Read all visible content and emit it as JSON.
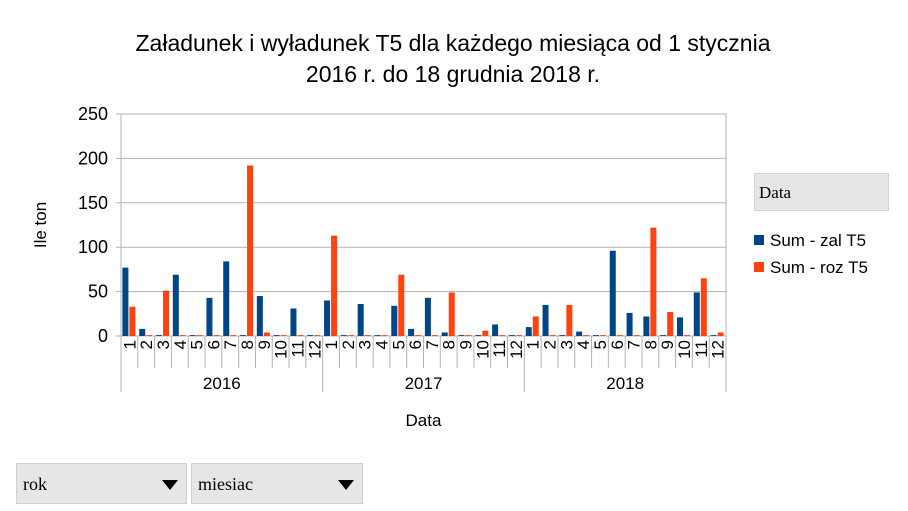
{
  "chart_data": {
    "type": "bar",
    "title": "Załadunek i wyładunek T5 dla każdego miesiąca od 1 stycznia 2016 r. do 18 grudnia 2018 r.",
    "title_lines": [
      "Załadunek i wyładunek T5 dla każdego miesiąca od 1 stycznia",
      "2016 r. do 18 grudnia 2018 r."
    ],
    "xlabel": "Data",
    "ylabel": "Ile ton",
    "ylim": [
      0,
      250
    ],
    "yticks": [
      "0",
      "50",
      "100",
      "150",
      "200",
      "250"
    ],
    "grid": true,
    "legend_position": "right",
    "legend_title": "Data",
    "years": [
      "2016",
      "2017",
      "2018"
    ],
    "months": [
      "1",
      "2",
      "3",
      "4",
      "5",
      "6",
      "7",
      "8",
      "9",
      "10",
      "11",
      "12"
    ],
    "series": [
      {
        "name": "Sum - zal T5",
        "color": "#004586",
        "values": [
          77,
          8,
          1,
          69,
          1,
          43,
          84,
          1,
          45,
          1,
          31,
          1,
          40,
          1,
          36,
          1,
          34,
          8,
          43,
          4,
          1,
          1,
          13,
          1,
          10,
          35,
          1,
          5,
          1,
          96,
          26,
          22,
          1,
          21,
          49,
          1
        ]
      },
      {
        "name": "Sum - roz T5",
        "color": "#ff420e",
        "values": [
          33,
          1,
          51,
          1,
          1,
          1,
          1,
          192,
          4,
          1,
          1,
          1,
          113,
          1,
          1,
          1,
          69,
          1,
          1,
          49,
          1,
          6,
          1,
          1,
          22,
          1,
          35,
          1,
          1,
          1,
          1,
          122,
          27,
          1,
          65,
          4
        ]
      }
    ]
  },
  "controls": {
    "dropdown_rok": "rok",
    "dropdown_miesiac": "miesiac"
  }
}
